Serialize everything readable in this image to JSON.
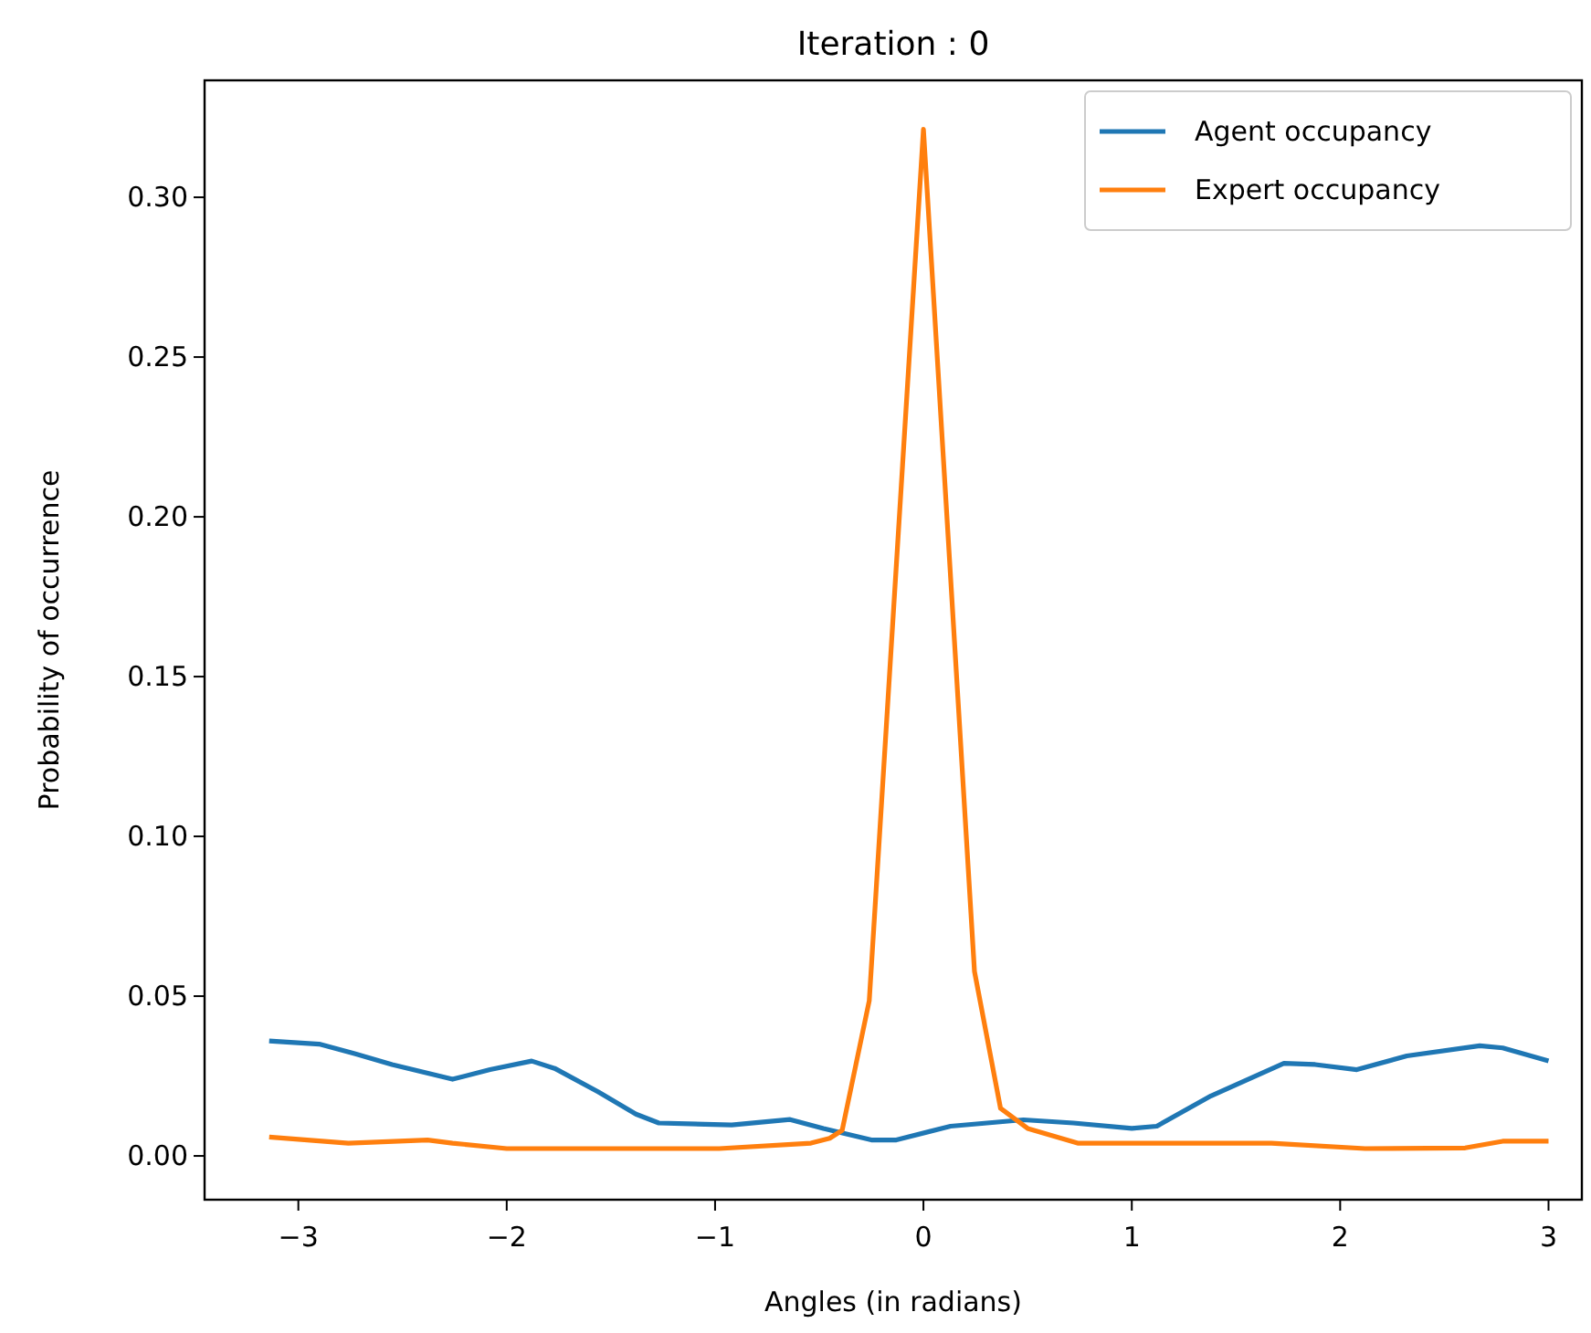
{
  "chart_data": {
    "type": "line",
    "title": "Iteration : 0",
    "xlabel": "Angles (in radians)",
    "ylabel": "Probability of occurrence",
    "xlim": [
      -3.45,
      3.16
    ],
    "xticks": [
      {
        "value": -3,
        "label": "−3"
      },
      {
        "value": -2,
        "label": "−2"
      },
      {
        "value": -1,
        "label": "−1"
      },
      0,
      1,
      2,
      3
    ],
    "ylim": [
      -0.0137,
      0.3366
    ],
    "yticks": [
      {
        "value": 0,
        "label": "0.00"
      },
      {
        "value": 0.05,
        "label": "0.05"
      },
      {
        "value": 0.1,
        "label": "0.10"
      },
      {
        "value": 0.15,
        "label": "0.15"
      },
      {
        "value": 0.2,
        "label": "0.20"
      },
      {
        "value": 0.25,
        "label": "0.25"
      },
      {
        "value": 0.3,
        "label": "0.30"
      }
    ],
    "grid": false,
    "legend": "top right",
    "line_style": "solid",
    "marker": "none",
    "series": [
      {
        "name": "Agent occupancy",
        "color": "#1f77b4",
        "x": [
          -3.14,
          -2.9,
          -2.73,
          -2.55,
          -2.26,
          -2.08,
          -1.88,
          -1.77,
          -1.56,
          -1.38,
          -1.27,
          -0.92,
          -0.64,
          -0.48,
          -0.25,
          -0.13,
          0.13,
          0.48,
          0.72,
          1.0,
          1.12,
          1.38,
          1.73,
          1.88,
          2.08,
          2.32,
          2.67,
          2.78,
          3.0
        ],
        "values": [
          0.036,
          0.035,
          0.032,
          0.0286,
          0.024,
          0.027,
          0.0297,
          0.0274,
          0.02,
          0.0131,
          0.0103,
          0.0097,
          0.0114,
          0.0086,
          0.005,
          0.005,
          0.0093,
          0.0113,
          0.0103,
          0.0086,
          0.0093,
          0.0188,
          0.029,
          0.0286,
          0.027,
          0.0313,
          0.0345,
          0.0338,
          0.0297
        ]
      },
      {
        "name": "Expert occupancy",
        "color": "#ff7f0e",
        "x": [
          -3.14,
          -2.76,
          -2.38,
          -2.26,
          -2.0,
          -1.42,
          -0.98,
          -0.54,
          -0.45,
          -0.39,
          -0.26,
          0,
          0.245,
          0.37,
          0.5,
          0.74,
          1.23,
          1.67,
          2.12,
          2.6,
          2.78,
          3.0
        ],
        "values": [
          0.0059,
          0.004,
          0.005,
          0.004,
          0.0023,
          0.0023,
          0.0023,
          0.004,
          0.0055,
          0.008,
          0.0486,
          0.3213,
          0.0577,
          0.0149,
          0.0086,
          0.004,
          0.004,
          0.004,
          0.0023,
          0.0025,
          0.0046,
          0.0046
        ]
      }
    ]
  }
}
